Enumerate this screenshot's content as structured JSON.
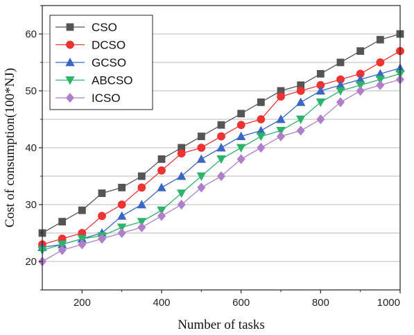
{
  "chart_data": {
    "type": "line",
    "xlabel": "Number of tasks",
    "ylabel": "Cost of consumption(100*NJ)",
    "xlim": [
      100,
      1000
    ],
    "ylim": [
      15,
      65
    ],
    "xticks": [
      200,
      400,
      600,
      800,
      1000
    ],
    "yticks": [
      20,
      30,
      40,
      50,
      60
    ],
    "grid": "horizontal",
    "legend_position": "top-left",
    "x": [
      100,
      150,
      200,
      250,
      300,
      350,
      400,
      450,
      500,
      550,
      600,
      650,
      700,
      750,
      800,
      850,
      900,
      950,
      1000
    ],
    "series": [
      {
        "name": "CSO",
        "color": "#555555",
        "marker": "square",
        "values": [
          25,
          27,
          29,
          32,
          33,
          35,
          38,
          40,
          42,
          44,
          46,
          48,
          50,
          51,
          53,
          55,
          57,
          59,
          60
        ]
      },
      {
        "name": "DCSO",
        "color": "#ee3333",
        "marker": "circle",
        "values": [
          23,
          24,
          25,
          28,
          30,
          33,
          36,
          39,
          40,
          42,
          44,
          45,
          49,
          50,
          51,
          52,
          53,
          55,
          57
        ]
      },
      {
        "name": "GCSO",
        "color": "#3a66c4",
        "marker": "triangle-up",
        "values": [
          22.5,
          23,
          24,
          25,
          28,
          30,
          33,
          35,
          38,
          40,
          42,
          43,
          45,
          48,
          50,
          51,
          52,
          53,
          54
        ]
      },
      {
        "name": "ABCSO",
        "color": "#2db36b",
        "marker": "triangle-down",
        "values": [
          22,
          23,
          24,
          24.5,
          26,
          27,
          29,
          32,
          35,
          38,
          40,
          42,
          43,
          45,
          48,
          50,
          51,
          52,
          53
        ]
      },
      {
        "name": "ICSO",
        "color": "#b07fc9",
        "marker": "diamond",
        "values": [
          20,
          22,
          23,
          24,
          25,
          26,
          28,
          30,
          33,
          35,
          38,
          40,
          42,
          43,
          45,
          48,
          50,
          51,
          52
        ]
      }
    ]
  }
}
